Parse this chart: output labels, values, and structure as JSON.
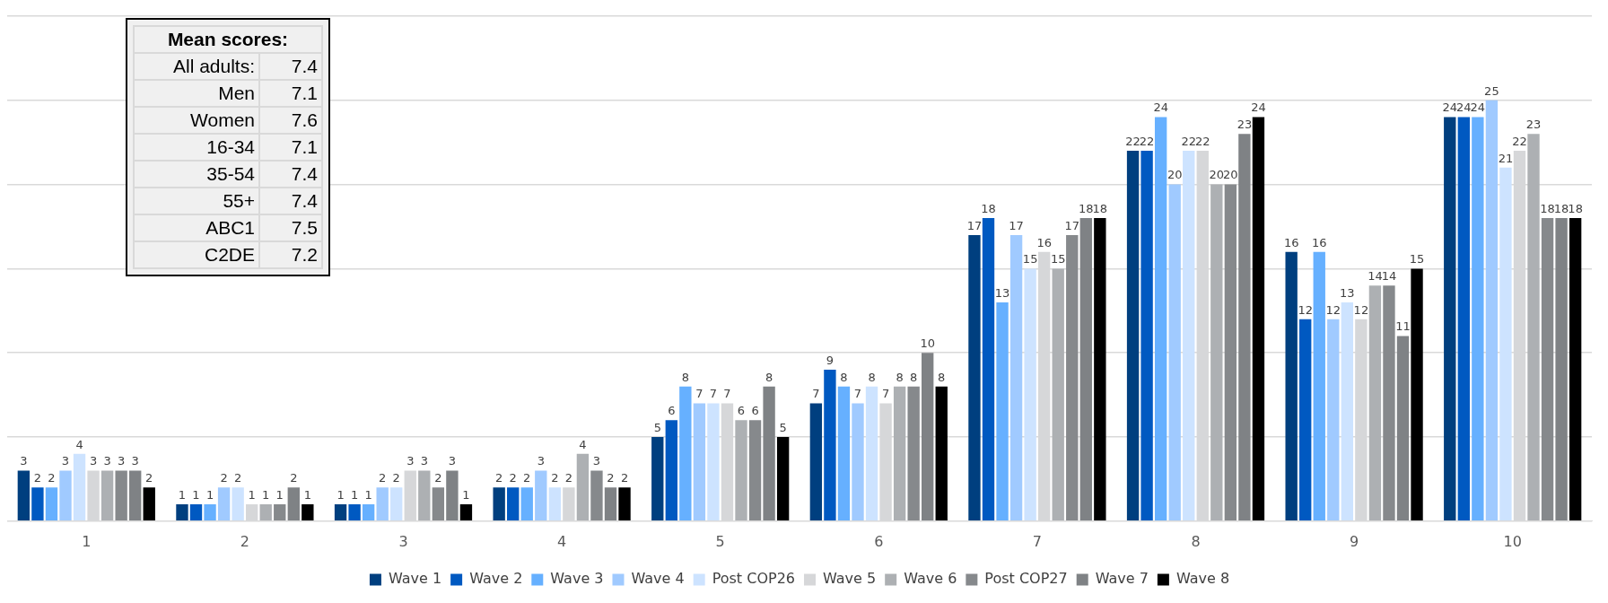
{
  "chart_data": {
    "type": "bar",
    "categories": [
      "1",
      "2",
      "3",
      "4",
      "5",
      "6",
      "7",
      "8",
      "9",
      "10"
    ],
    "series": [
      {
        "name": "Wave 1",
        "color": "#003f7f",
        "values": [
          3,
          1,
          1,
          2,
          5,
          7,
          17,
          22,
          16,
          24
        ]
      },
      {
        "name": "Wave 2",
        "color": "#0059c1",
        "values": [
          2,
          1,
          1,
          2,
          6,
          9,
          18,
          22,
          12,
          24
        ]
      },
      {
        "name": "Wave 3",
        "color": "#66b0ff",
        "values": [
          2,
          1,
          1,
          2,
          8,
          8,
          13,
          24,
          16,
          24
        ]
      },
      {
        "name": "Wave 4",
        "color": "#a0caff",
        "values": [
          3,
          2,
          2,
          3,
          7,
          7,
          17,
          20,
          12,
          25
        ]
      },
      {
        "name": "Post COP26",
        "color": "#cde3ff",
        "values": [
          4,
          2,
          2,
          2,
          7,
          8,
          15,
          22,
          13,
          21
        ]
      },
      {
        "name": "Wave 5",
        "color": "#d6d7d9",
        "values": [
          3,
          1,
          3,
          2,
          7,
          7,
          16,
          22,
          12,
          22
        ]
      },
      {
        "name": "Wave 6",
        "color": "#adb0b3",
        "values": [
          3,
          1,
          3,
          4,
          6,
          8,
          15,
          20,
          14,
          23
        ]
      },
      {
        "name": "Post COP27",
        "color": "#86898c",
        "values": [
          3,
          1,
          2,
          3,
          6,
          8,
          17,
          20,
          14,
          18
        ]
      },
      {
        "name": "Wave 7",
        "color": "#7f8285",
        "values": [
          3,
          2,
          3,
          2,
          8,
          10,
          18,
          23,
          11,
          18
        ]
      },
      {
        "name": "Wave 8",
        "color": "#000000",
        "values": [
          2,
          1,
          1,
          2,
          5,
          8,
          18,
          24,
          15,
          18
        ]
      }
    ],
    "ylim": [
      0,
      30
    ],
    "yticks": [
      {
        "value": 0,
        "label": null
      },
      {
        "value": 5,
        "label": null
      },
      {
        "value": 10,
        "label": null
      },
      {
        "value": 15,
        "label": null
      },
      {
        "value": 20,
        "label": null
      },
      {
        "value": 25,
        "label": null
      },
      {
        "value": 30,
        "label": null
      }
    ],
    "tick_labels": "x",
    "grid": "y",
    "legend": "bottom",
    "data_labels": true,
    "annotations": [
      "Mean scores:",
      "All adults:",
      "7.4",
      "Men",
      "7.1",
      "Women",
      "7.6",
      "16-34",
      "7.1",
      "35-54",
      "7.4",
      "55+",
      "7.4",
      "ABC1",
      "7.5",
      "C2DE",
      "7.2"
    ]
  }
}
